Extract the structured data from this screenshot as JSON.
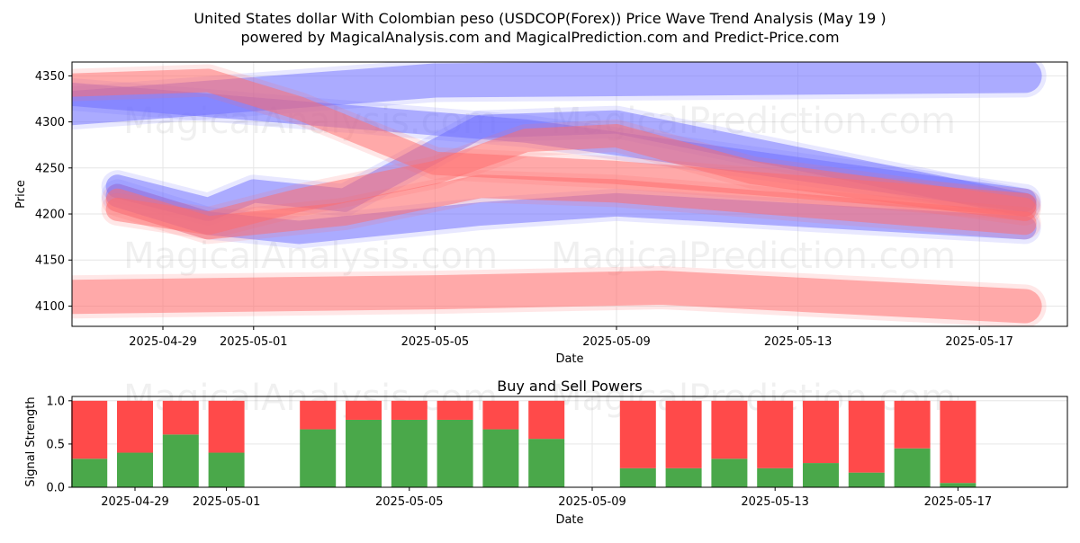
{
  "title_line1": "United States dollar With Colombian peso (USDCOP(Forex)) Price Wave Trend Analysis (May 19 )",
  "title_line2": "powered by MagicalAnalysis.com and MagicalPrediction.com and Predict-Price.com",
  "watermarks": [
    "MagicalAnalysis.com",
    "MagicalPrediction.com"
  ],
  "colors": {
    "buy": "#4aa84a",
    "sell": "#ff4a4a",
    "blue_wave": "#6e6eff",
    "red_wave": "#ff6b6b"
  },
  "chart_data": [
    {
      "type": "line",
      "xlabel": "Date",
      "ylabel": "Price",
      "ylim": [
        4078,
        4365
      ],
      "yticks": [
        4100,
        4150,
        4200,
        4250,
        4300,
        4350
      ],
      "xticks": [
        "2025-04-29",
        "2025-05-01",
        "2025-05-05",
        "2025-05-09",
        "2025-05-13",
        "2025-05-17"
      ],
      "grid": true,
      "series": [
        {
          "color": "blue",
          "points": [
            [
              "2025-04-27",
              4315
            ],
            [
              "2025-05-05",
              4345
            ],
            [
              "2025-05-18",
              4350
            ]
          ]
        },
        {
          "color": "blue",
          "points": [
            [
              "2025-04-27",
              4330
            ],
            [
              "2025-05-07",
              4290
            ],
            [
              "2025-05-18",
              4215
            ]
          ]
        },
        {
          "color": "blue",
          "points": [
            [
              "2025-04-28",
              4230
            ],
            [
              "2025-04-30",
              4205
            ],
            [
              "2025-05-01",
              4225
            ],
            [
              "2025-05-03",
              4215
            ],
            [
              "2025-05-06",
              4295
            ],
            [
              "2025-05-09",
              4300
            ],
            [
              "2025-05-18",
              4210
            ]
          ]
        },
        {
          "color": "blue",
          "points": [
            [
              "2025-04-28",
              4220
            ],
            [
              "2025-04-30",
              4190
            ],
            [
              "2025-05-02",
              4180
            ],
            [
              "2025-05-06",
              4200
            ],
            [
              "2025-05-09",
              4210
            ],
            [
              "2025-05-18",
              4185
            ]
          ]
        },
        {
          "color": "red",
          "points": [
            [
              "2025-04-27",
              4340
            ],
            [
              "2025-04-30",
              4345
            ],
            [
              "2025-05-02",
              4315
            ],
            [
              "2025-05-05",
              4255
            ],
            [
              "2025-05-09",
              4245
            ],
            [
              "2025-05-18",
              4210
            ]
          ]
        },
        {
          "color": "red",
          "points": [
            [
              "2025-04-28",
              4205
            ],
            [
              "2025-04-30",
              4190
            ],
            [
              "2025-05-02",
              4215
            ],
            [
              "2025-05-05",
              4245
            ],
            [
              "2025-05-07",
              4280
            ],
            [
              "2025-05-09",
              4285
            ],
            [
              "2025-05-12",
              4245
            ],
            [
              "2025-05-18",
              4205
            ]
          ]
        },
        {
          "color": "red",
          "points": [
            [
              "2025-04-28",
              4215
            ],
            [
              "2025-04-30",
              4185
            ],
            [
              "2025-05-03",
              4200
            ],
            [
              "2025-05-06",
              4230
            ],
            [
              "2025-05-09",
              4225
            ],
            [
              "2025-05-18",
              4190
            ]
          ]
        },
        {
          "color": "red",
          "points": [
            [
              "2025-04-27",
              4110
            ],
            [
              "2025-05-05",
              4115
            ],
            [
              "2025-05-10",
              4120
            ],
            [
              "2025-05-18",
              4100
            ]
          ]
        }
      ]
    },
    {
      "type": "bar",
      "title": "Buy and Sell Powers",
      "xlabel": "Date",
      "ylabel": "Signal Strength",
      "ylim": [
        0,
        1.05
      ],
      "yticks": [
        0.0,
        0.5,
        1.0
      ],
      "xticks": [
        "2025-04-29",
        "2025-05-01",
        "2025-05-05",
        "2025-05-09",
        "2025-05-13",
        "2025-05-17"
      ],
      "grid": true,
      "categories": [
        "2025-04-28",
        "2025-04-29",
        "2025-04-30",
        "2025-05-01",
        "2025-05-03",
        "2025-05-04",
        "2025-05-05",
        "2025-05-06",
        "2025-05-07",
        "2025-05-08",
        "2025-05-10",
        "2025-05-11",
        "2025-05-12",
        "2025-05-13",
        "2025-05-14",
        "2025-05-15",
        "2025-05-16",
        "2025-05-17"
      ],
      "series": [
        {
          "values": [
            0.33,
            0.4,
            0.61,
            0.4,
            0.67,
            0.78,
            0.78,
            0.78,
            0.67,
            0.56,
            0.22,
            0.22,
            0.33,
            0.22,
            0.28,
            0.17,
            0.45,
            0.05
          ]
        },
        {
          "values": [
            0.67,
            0.6,
            0.39,
            0.6,
            0.33,
            0.22,
            0.22,
            0.22,
            0.33,
            0.44,
            0.78,
            0.78,
            0.67,
            0.78,
            0.72,
            0.83,
            0.55,
            0.95
          ]
        }
      ]
    }
  ]
}
